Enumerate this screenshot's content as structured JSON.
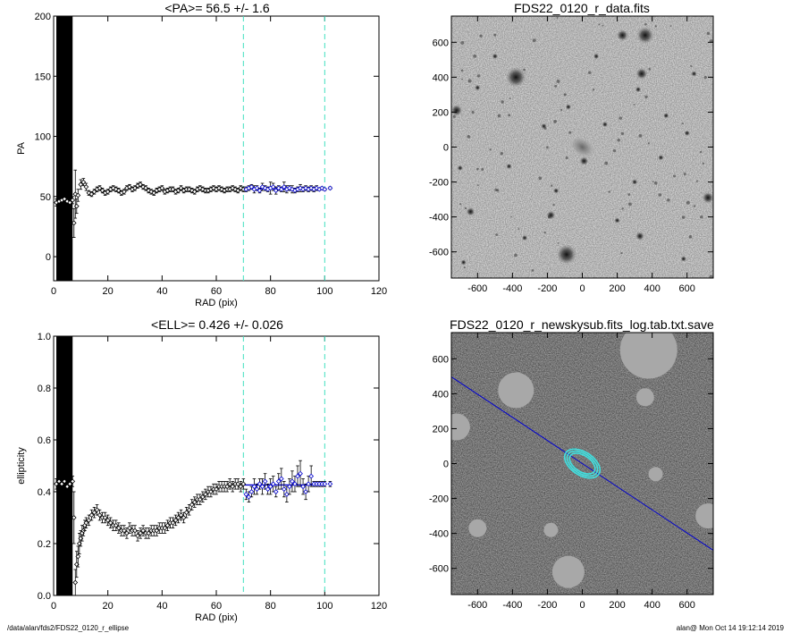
{
  "chart_data": [
    {
      "id": "pa",
      "type": "scatter",
      "title": "<PA>=  56.5 +/-   1.6",
      "xlabel": "RAD (pix)",
      "ylabel": "PA",
      "xlim": [
        0,
        120
      ],
      "ylim": [
        -20,
        200
      ],
      "xticks": [
        0,
        20,
        40,
        60,
        80,
        100,
        120
      ],
      "yticks": [
        0,
        50,
        100,
        150,
        200
      ],
      "fit_range": [
        70,
        100
      ],
      "fit_value": 56.5,
      "colors": {
        "points": "#000000",
        "fit": "#0000cc",
        "markers": "#40e0c0"
      },
      "series": [
        {
          "x": [
            1,
            2,
            3,
            4,
            5,
            6,
            7,
            7.5,
            8,
            8.5,
            9,
            10,
            11,
            12,
            13,
            14,
            15,
            16,
            17,
            18,
            19,
            20,
            21,
            22,
            23,
            24,
            25,
            26,
            27,
            28,
            29,
            30,
            31,
            32,
            33,
            34,
            35,
            36,
            37,
            38,
            39,
            40,
            41,
            42,
            43,
            44,
            45,
            46,
            47,
            48,
            49,
            50,
            51,
            52,
            53,
            54,
            55,
            56,
            57,
            58,
            59,
            60,
            61,
            62,
            63,
            64,
            65,
            66,
            67,
            68,
            69,
            70
          ],
          "y": [
            45,
            46,
            47,
            48,
            46,
            45,
            47,
            28,
            52,
            42,
            51,
            60,
            62,
            58,
            53,
            52,
            54,
            56,
            57,
            55,
            53,
            54,
            56,
            57,
            56,
            55,
            53,
            54,
            57,
            58,
            56,
            57,
            59,
            60,
            58,
            57,
            55,
            54,
            53,
            55,
            56,
            57,
            54,
            55,
            56,
            56,
            54,
            55,
            57,
            55,
            56,
            56,
            55,
            54,
            56,
            57,
            56,
            55,
            55,
            56,
            57,
            56,
            57,
            56,
            55,
            56,
            56,
            57,
            56,
            55,
            57,
            56
          ],
          "err": [
            3,
            3,
            3,
            3,
            3,
            3,
            3,
            12,
            20,
            6,
            5,
            4,
            3,
            3,
            2,
            2,
            2,
            2,
            2,
            2,
            2,
            2,
            2,
            2,
            2,
            2,
            2,
            2,
            2,
            2,
            2,
            2,
            2,
            2,
            2,
            2,
            2,
            2,
            2,
            2,
            2,
            2,
            2,
            2,
            2,
            2,
            2,
            2,
            2,
            2,
            2,
            2,
            2,
            2,
            2,
            2,
            2,
            2,
            2,
            2,
            2,
            2,
            2,
            2,
            2,
            2,
            2,
            2,
            2,
            2,
            2,
            2
          ]
        },
        {
          "x": [
            71,
            72,
            73,
            74,
            75,
            76,
            77,
            78,
            79,
            80,
            81,
            82,
            83,
            84,
            85,
            86,
            87,
            88,
            89,
            90,
            91,
            92,
            93,
            94,
            95,
            96,
            97,
            98,
            99,
            100,
            102
          ],
          "y": [
            56,
            57,
            58,
            56,
            57,
            55,
            58,
            57,
            56,
            57,
            58,
            55,
            57,
            56,
            58,
            56,
            57,
            56,
            55,
            56,
            57,
            56,
            57,
            56,
            57,
            56,
            57,
            56,
            57,
            56,
            57
          ],
          "err": [
            2,
            2,
            2,
            3,
            2,
            2,
            3,
            2,
            2,
            5,
            3,
            3,
            2,
            2,
            4,
            3,
            2,
            3,
            2,
            2,
            3,
            2,
            2,
            2,
            2,
            2,
            2,
            1,
            1,
            1,
            1
          ]
        }
      ]
    },
    {
      "id": "ell",
      "type": "scatter",
      "title": "<ELL>= 0.426 +/-  0.026",
      "xlabel": "RAD (pix)",
      "ylabel": "ellipticity",
      "xlim": [
        0,
        120
      ],
      "ylim": [
        0,
        1
      ],
      "xticks": [
        0,
        20,
        40,
        60,
        80,
        100,
        120
      ],
      "yticks": [
        0.0,
        0.2,
        0.4,
        0.6,
        0.8,
        1.0
      ],
      "fit_range": [
        70,
        100
      ],
      "fit_value": 0.426,
      "colors": {
        "points": "#000000",
        "fit": "#0000cc",
        "markers": "#40e0c0"
      },
      "series": [
        {
          "x": [
            1,
            2,
            3,
            4,
            5,
            6,
            7,
            7.5,
            8,
            8.5,
            9,
            9.5,
            10,
            10.5,
            11,
            11.5,
            12,
            13,
            14,
            15,
            16,
            17,
            18,
            19,
            20,
            21,
            22,
            23,
            24,
            25,
            26,
            27,
            28,
            29,
            30,
            31,
            32,
            33,
            34,
            35,
            36,
            37,
            38,
            39,
            40,
            41,
            42,
            43,
            44,
            45,
            46,
            47,
            48,
            49,
            50,
            51,
            52,
            53,
            54,
            55,
            56,
            57,
            58,
            59,
            60,
            61,
            62,
            63,
            64,
            65,
            66,
            67,
            68,
            69,
            70
          ],
          "y": [
            0.43,
            0.44,
            0.43,
            0.44,
            0.42,
            0.43,
            0.44,
            0.3,
            0.05,
            0.12,
            0.15,
            0.2,
            0.22,
            0.24,
            0.25,
            0.27,
            0.28,
            0.29,
            0.31,
            0.32,
            0.33,
            0.31,
            0.3,
            0.3,
            0.29,
            0.28,
            0.27,
            0.27,
            0.26,
            0.25,
            0.25,
            0.24,
            0.26,
            0.25,
            0.25,
            0.23,
            0.24,
            0.25,
            0.24,
            0.24,
            0.25,
            0.25,
            0.25,
            0.26,
            0.26,
            0.26,
            0.27,
            0.28,
            0.28,
            0.29,
            0.3,
            0.31,
            0.3,
            0.32,
            0.33,
            0.35,
            0.36,
            0.37,
            0.37,
            0.38,
            0.39,
            0.4,
            0.4,
            0.41,
            0.41,
            0.42,
            0.42,
            0.42,
            0.42,
            0.43,
            0.42,
            0.43,
            0.43,
            0.42,
            0.43
          ],
          "err": [
            0.02,
            0.02,
            0.02,
            0.02,
            0.02,
            0.02,
            0.02,
            0.1,
            0.05,
            0.05,
            0.04,
            0.04,
            0.03,
            0.03,
            0.02,
            0.02,
            0.02,
            0.02,
            0.02,
            0.02,
            0.02,
            0.02,
            0.02,
            0.02,
            0.02,
            0.02,
            0.02,
            0.02,
            0.02,
            0.02,
            0.02,
            0.02,
            0.02,
            0.02,
            0.02,
            0.02,
            0.02,
            0.02,
            0.02,
            0.02,
            0.02,
            0.02,
            0.02,
            0.02,
            0.02,
            0.02,
            0.02,
            0.02,
            0.02,
            0.02,
            0.02,
            0.02,
            0.02,
            0.02,
            0.02,
            0.02,
            0.02,
            0.02,
            0.02,
            0.02,
            0.02,
            0.02,
            0.02,
            0.02,
            0.02,
            0.02,
            0.02,
            0.02,
            0.02,
            0.02,
            0.02,
            0.02,
            0.02,
            0.02,
            0.02
          ]
        },
        {
          "x": [
            71,
            72,
            73,
            74,
            75,
            76,
            77,
            78,
            79,
            80,
            81,
            82,
            83,
            84,
            85,
            86,
            87,
            88,
            89,
            90,
            91,
            92,
            93,
            94,
            95,
            96,
            97,
            98,
            99,
            100,
            102
          ],
          "y": [
            0.39,
            0.38,
            0.4,
            0.42,
            0.41,
            0.43,
            0.42,
            0.44,
            0.41,
            0.42,
            0.43,
            0.4,
            0.44,
            0.45,
            0.41,
            0.39,
            0.42,
            0.44,
            0.43,
            0.46,
            0.47,
            0.42,
            0.4,
            0.43,
            0.46,
            0.43,
            0.43,
            0.43,
            0.43,
            0.43,
            0.43
          ],
          "err": [
            0.02,
            0.02,
            0.02,
            0.03,
            0.02,
            0.02,
            0.03,
            0.03,
            0.02,
            0.03,
            0.03,
            0.02,
            0.03,
            0.04,
            0.03,
            0.03,
            0.03,
            0.04,
            0.03,
            0.04,
            0.05,
            0.03,
            0.03,
            0.03,
            0.04,
            0.01,
            0.01,
            0.01,
            0.01,
            0.01,
            0.01
          ]
        }
      ]
    },
    {
      "id": "img1",
      "type": "heatmap",
      "title": "FDS22_0120_r_data.fits",
      "xlim": [
        -750,
        750
      ],
      "ylim": [
        -750,
        750
      ],
      "xticks": [
        -600,
        -400,
        -200,
        0,
        200,
        400,
        600
      ],
      "yticks": [
        -600,
        -400,
        -200,
        0,
        200,
        400,
        600
      ],
      "colors": {
        "background": "#d4d4d4",
        "sources": "#222222"
      }
    },
    {
      "id": "img2",
      "type": "heatmap",
      "title": "FDS22_0120_r_newskysub.fits_log.tab.txt.save",
      "xlim": [
        -750,
        750
      ],
      "ylim": [
        -750,
        750
      ],
      "xticks": [
        -600,
        -400,
        -200,
        0,
        200,
        400,
        600
      ],
      "yticks": [
        -600,
        -400,
        -200,
        0,
        200,
        400,
        600
      ],
      "colors": {
        "background": "#9e9e9e",
        "masks": "#a8a8a8",
        "line": "#0000cc",
        "ellipse": "#40e0e0"
      }
    }
  ],
  "footer": {
    "left": "/data/alan/fds2/FDS22_0120_r_ellipse",
    "right": "alan@  Mon Oct 14 19:12:14 2019"
  }
}
